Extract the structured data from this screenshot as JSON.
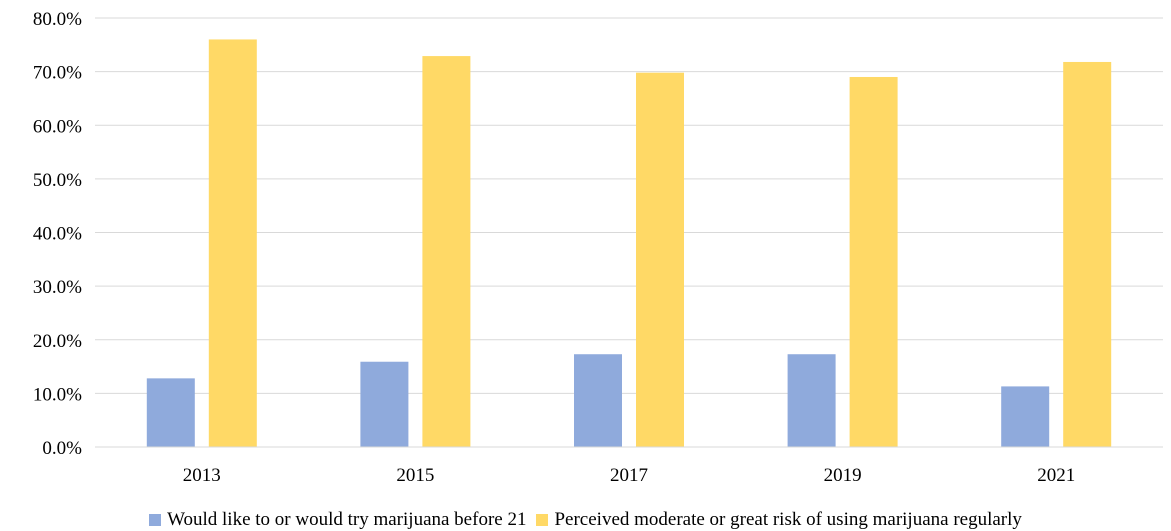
{
  "chart_data": {
    "type": "bar",
    "categories": [
      "2013",
      "2015",
      "2017",
      "2019",
      "2021"
    ],
    "series": [
      {
        "name": "Would like to or would try marijuana before 21",
        "values": [
          12.8,
          15.9,
          17.3,
          17.3,
          11.3
        ],
        "color": "#8faadc"
      },
      {
        "name": "Perceived moderate or great risk of using marijuana regularly",
        "values": [
          76.0,
          72.9,
          69.8,
          69.0,
          71.8
        ],
        "color": "#ffd966"
      }
    ],
    "title": "",
    "xlabel": "",
    "ylabel": "",
    "ylim": [
      0,
      80
    ],
    "yticks": [
      "0.0%",
      "10.0%",
      "20.0%",
      "30.0%",
      "40.0%",
      "50.0%",
      "60.0%",
      "70.0%",
      "80.0%"
    ],
    "grid": true,
    "legend_position": "bottom"
  }
}
